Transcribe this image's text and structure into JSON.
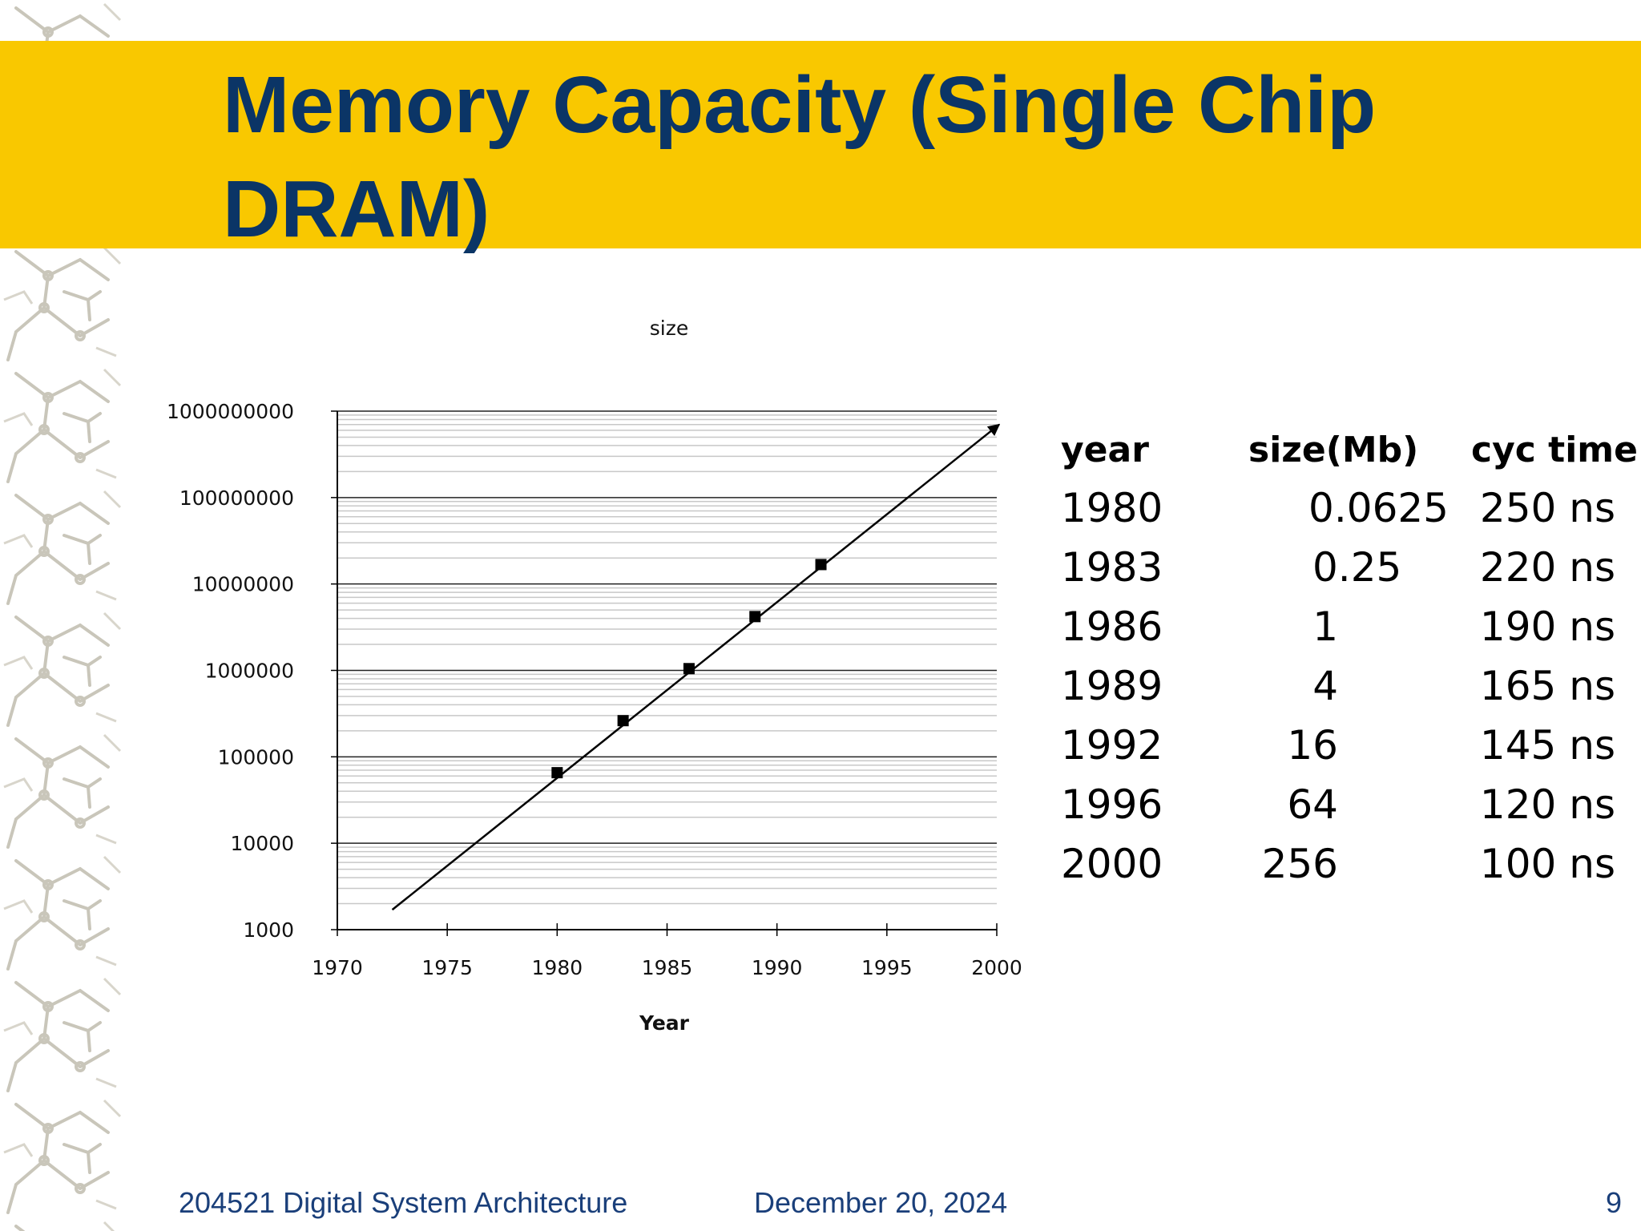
{
  "slide": {
    "title": "Memory Capacity (Single Chip DRAM)",
    "colors": {
      "title_bar": "#f9c800",
      "title_text": "#0b3566",
      "footer_text": "#1a3f7a",
      "gridline": "#c8c8c8"
    }
  },
  "chart_data": {
    "type": "scatter",
    "title": "size",
    "xlabel": "Year",
    "ylabel": "",
    "y_scale": "log",
    "xlim": [
      1970,
      2000
    ],
    "ylim": [
      1000,
      1000000000
    ],
    "x_ticks": [
      "1970",
      "1975",
      "1980",
      "1985",
      "1990",
      "1995",
      "2000"
    ],
    "y_ticks": [
      "1000",
      "10000",
      "100000",
      "1000000",
      "10000000",
      "100000000",
      "1000000000"
    ],
    "grid": true,
    "series": [
      {
        "marker": "square",
        "x": [
          1980,
          1983,
          1986,
          1989,
          1992
        ],
        "y": [
          65536,
          262144,
          1048576,
          4194304,
          16777216
        ]
      }
    ],
    "trend_arrow": {
      "from": [
        1972.5,
        1700
      ],
      "to": [
        2000,
        700000000
      ]
    }
  },
  "table": {
    "headers": [
      "year",
      "size(Mb)",
      "cyc time"
    ],
    "rows": [
      [
        "1980",
        "0.0625",
        "250 ns"
      ],
      [
        "1983",
        "0.25",
        "220 ns"
      ],
      [
        "1986",
        "1",
        "190 ns"
      ],
      [
        "1989",
        "4",
        "165 ns"
      ],
      [
        "1992",
        "16",
        "145 ns"
      ],
      [
        "1996",
        "64",
        "120 ns"
      ],
      [
        "2000",
        "256",
        "100 ns"
      ]
    ]
  },
  "footer": {
    "course": "204521 Digital System Architecture",
    "date": "December 20, 2024",
    "page": "9"
  }
}
